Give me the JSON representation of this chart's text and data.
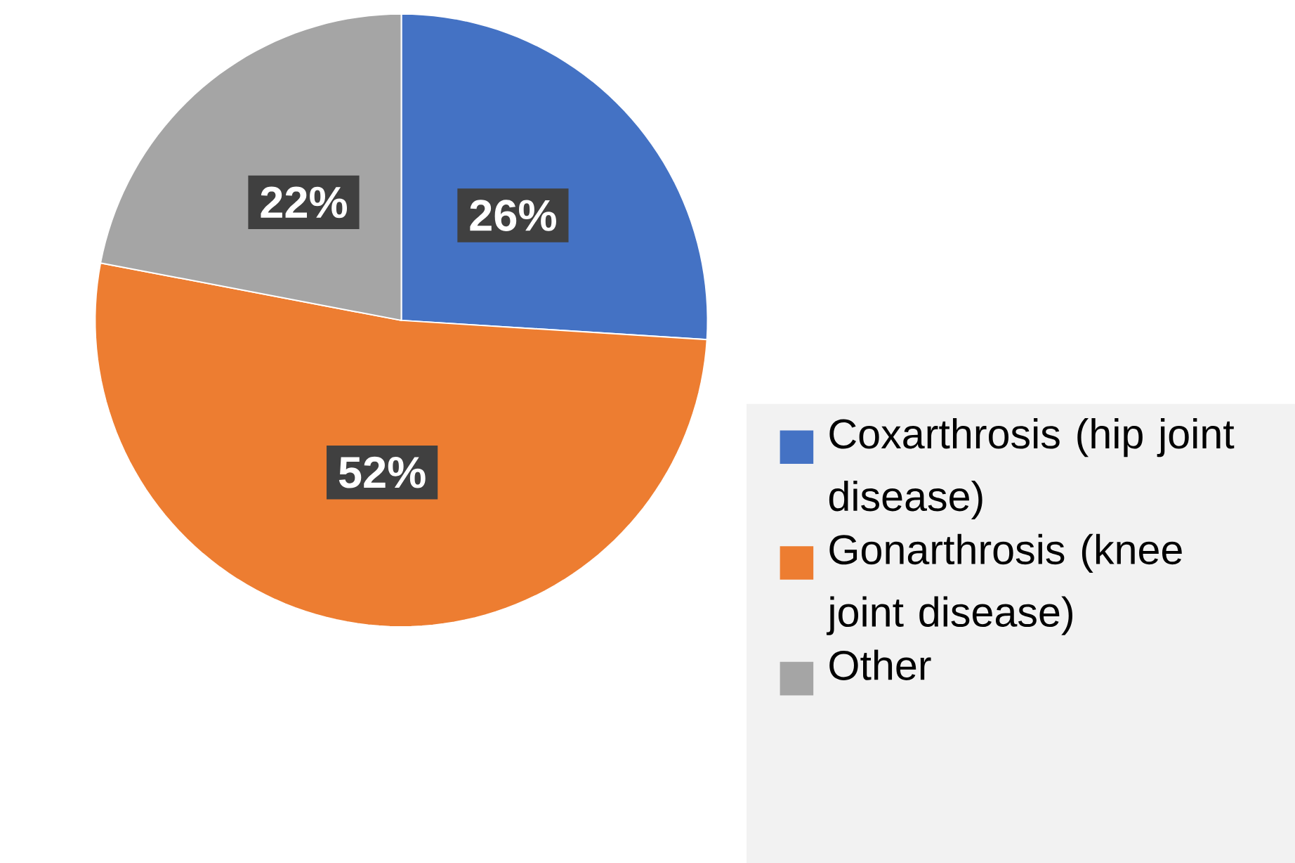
{
  "chart_data": {
    "type": "pie",
    "categories": [
      "Coxarthrosis (hip joint disease)",
      "Gonarthrosis (knee joint disease)",
      "Other"
    ],
    "values": [
      26,
      52,
      22
    ],
    "colors": [
      "#4472c4",
      "#ed7d31",
      "#a5a5a5"
    ],
    "value_labels": [
      "26%",
      "52%",
      "22%"
    ],
    "legend": "bottom right"
  }
}
